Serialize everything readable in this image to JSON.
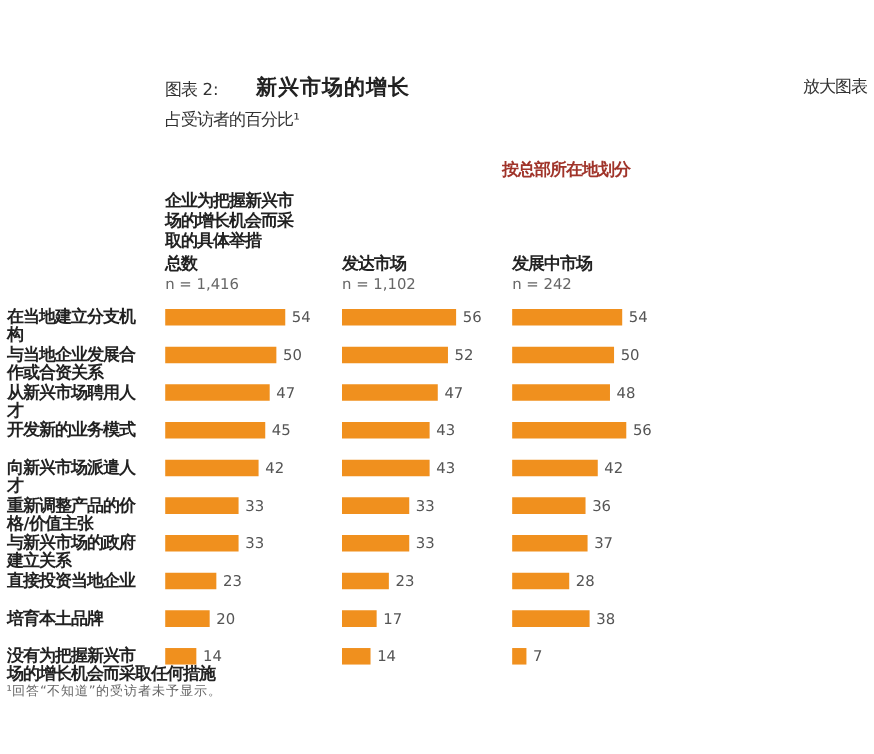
{
  "chart_data": [
    {
      "type": "other",
      "title": "新兴市场的增长",
      "subtitle": "占受访者的百分比¹",
      "annotations": [
        "图表 2:",
        "放大图表",
        "按总部所在地划分",
        "¹回答“不知道”的受访者未予显示。"
      ]
    },
    {
      "type": "bar",
      "orientation": "horizontal",
      "title": "总数",
      "subtitle": "n = 1,416",
      "ylabel": "企业为把握新兴市场的增长机会而采取的具体举措",
      "tick_labels": "y",
      "data_labels": true,
      "color": "#f0901e",
      "categories": [
        "在当地建立分支机构",
        "与当地企业发展合作或合资关系",
        "从新兴市场聘用人才",
        "开发新的业务模式",
        "向新兴市场派遣人才",
        "重新调整产品的价格/价值主张",
        "与新兴市场的政府建立关系",
        "直接投资当地企业",
        "培育本土品牌",
        "没有为把握新兴市场的增长机会而采取任何措施"
      ],
      "values": [
        54,
        50,
        47,
        45,
        42,
        33,
        33,
        23,
        20,
        14
      ]
    },
    {
      "type": "bar",
      "orientation": "horizontal",
      "title": "发达市场",
      "subtitle": "n = 1,102",
      "tick_labels": false,
      "data_labels": true,
      "color": "#f0901e",
      "categories": [
        "在当地建立分支机构",
        "与当地企业发展合作或合资关系",
        "从新兴市场聘用人才",
        "开发新的业务模式",
        "向新兴市场派遣人才",
        "重新调整产品的价格/价值主张",
        "与新兴市场的政府建立关系",
        "直接投资当地企业",
        "培育本土品牌",
        "没有为把握新兴市场的增长机会而采取任何措施"
      ],
      "values": [
        56,
        52,
        47,
        43,
        43,
        33,
        33,
        23,
        17,
        14
      ]
    },
    {
      "type": "bar",
      "orientation": "horizontal",
      "title": "发展中市场",
      "subtitle": "n = 242",
      "tick_labels": false,
      "data_labels": true,
      "color": "#f0901e",
      "categories": [
        "在当地建立分支机构",
        "与当地企业发展合作或合资关系",
        "从新兴市场聘用人才",
        "开发新的业务模式",
        "向新兴市场派遣人才",
        "重新调整产品的价格/价值主张",
        "与新兴市场的政府建立关系",
        "直接投资当地企业",
        "培育本土品牌",
        "没有为把握新兴市场的增长机会而采取任何措施"
      ],
      "values": [
        54,
        50,
        48,
        56,
        42,
        36,
        37,
        28,
        38,
        7
      ]
    }
  ]
}
